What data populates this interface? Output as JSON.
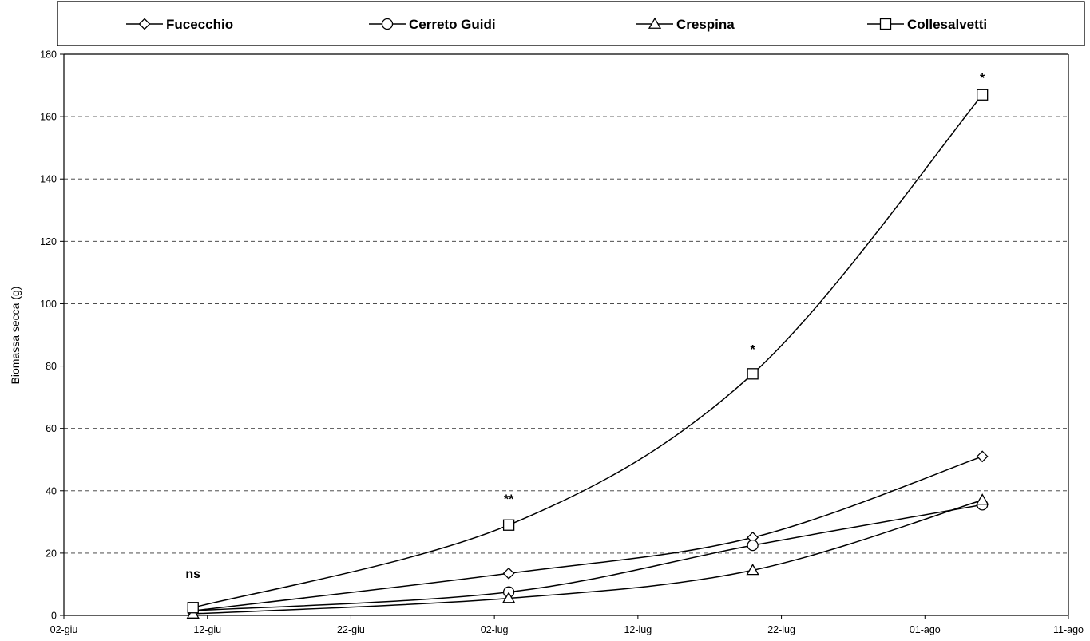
{
  "chart_data": {
    "type": "line",
    "title": "",
    "xlabel": "",
    "ylabel": "Biomassa secca (g)",
    "x_ticks": [
      "02-giu",
      "12-giu",
      "22-giu",
      "02-lug",
      "12-lug",
      "22-lug",
      "01-ago",
      "11-ago"
    ],
    "x_tick_days": [
      0,
      10,
      20,
      30,
      40,
      50,
      60,
      70
    ],
    "xlim_days": [
      0,
      70
    ],
    "ylim": [
      0,
      180
    ],
    "y_ticks": [
      0,
      20,
      40,
      60,
      80,
      100,
      120,
      140,
      160,
      180
    ],
    "grid": "horizontal dashed",
    "legend_placement": "top",
    "x_dates": [
      "11-giu",
      "03-lug",
      "20-lug",
      "05-ago"
    ],
    "series": [
      {
        "name": "Fucecchio",
        "marker": "diamond",
        "values": [
          1.5,
          13.5,
          25,
          51
        ]
      },
      {
        "name": "Cerreto Guidi",
        "marker": "circle",
        "values": [
          1.5,
          7.5,
          22.5,
          35.5
        ]
      },
      {
        "name": "Crespina",
        "marker": "triangle",
        "values": [
          0.5,
          5.5,
          14.5,
          37
        ]
      },
      {
        "name": "Collesalvetti",
        "marker": "square",
        "values": [
          2.5,
          29,
          77.5,
          167
        ]
      }
    ],
    "annotations": [
      {
        "text": "ns",
        "x_index": 0,
        "y": 12
      },
      {
        "text": "**",
        "x_index": 1,
        "y": 36
      },
      {
        "text": "*",
        "x_index": 2,
        "y": 84
      },
      {
        "text": "*",
        "x_index": 3,
        "y": 171
      }
    ]
  }
}
